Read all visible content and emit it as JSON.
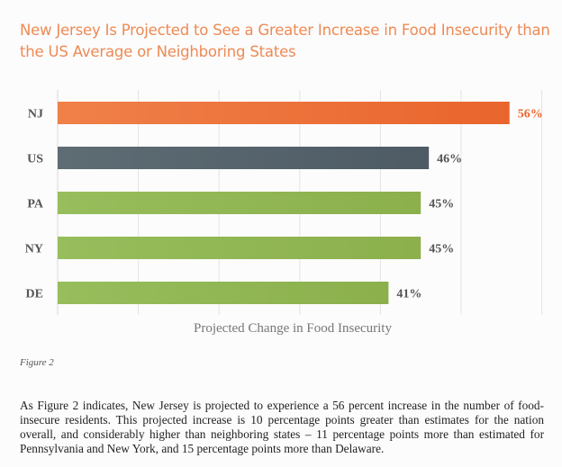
{
  "title": "New Jersey Is Projected to See a Greater Increase in Food Insecurity than the US Average or Neighboring States",
  "figure_caption": "Figure 2",
  "body_text": "As Figure 2 indicates, New Jersey is projected to experience a 56 percent increase in the number of food-insecure residents. This projected increase is 10 percentage points greater than estimates for the nation overall, and considerably higher than neighboring states – 11 percentage points more than estimated for Pennsylvania and New York, and 15 percentage points more than Delaware.",
  "colors": {
    "highlight": "#ec6e36",
    "national": "#56636c",
    "neighbors": "#90b755",
    "highlight_label": "#e8682f",
    "label": "#555555"
  },
  "chart_data": {
    "type": "bar",
    "orientation": "horizontal",
    "title": "New Jersey Is Projected to See a Greater Increase in Food Insecurity than the US Average or Neighboring States",
    "xlabel": "Projected Change in Food Insecurity",
    "ylabel": "",
    "categories": [
      "NJ",
      "US",
      "PA",
      "NY",
      "DE"
    ],
    "values": [
      56,
      46,
      45,
      45,
      41
    ],
    "value_labels": [
      "56%",
      "46%",
      "45%",
      "45%",
      "41%"
    ],
    "bar_colors": [
      "#ec6e36",
      "#56636c",
      "#90b755",
      "#90b755",
      "#90b755"
    ],
    "label_colors": [
      "#e8682f",
      "#555555",
      "#555555",
      "#555555",
      "#555555"
    ],
    "xlim": [
      0,
      60
    ],
    "grid_step": 10,
    "grid": true,
    "x_tick_labels_visible": false,
    "legend": "none"
  }
}
